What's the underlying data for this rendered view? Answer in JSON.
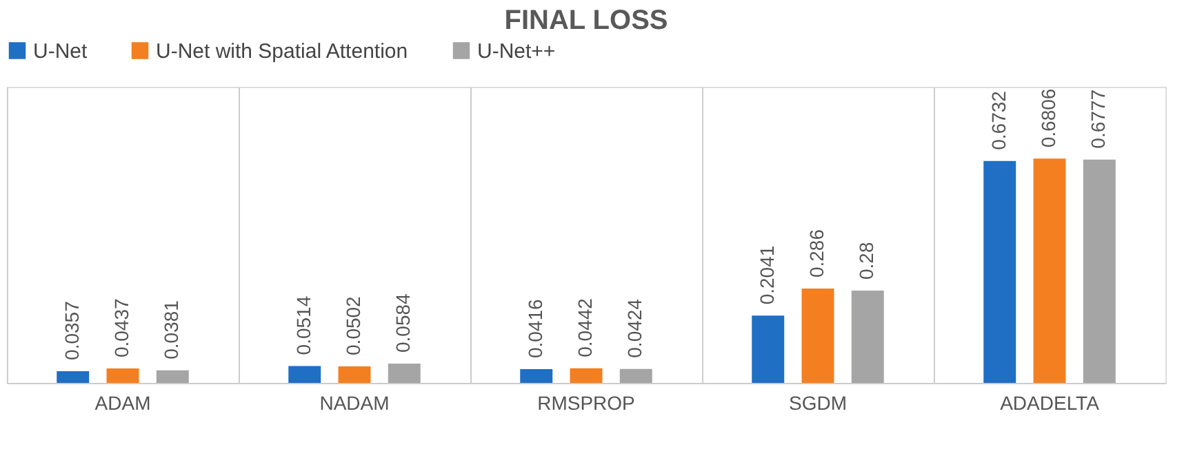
{
  "chart_data": {
    "type": "bar",
    "title": "FINAL LOSS",
    "categories": [
      "ADAM",
      "NADAM",
      "RMSPROP",
      "SGDM",
      "ADADELTA"
    ],
    "series": [
      {
        "name": "U-Net",
        "color": "#1f6fc4",
        "values": [
          0.0357,
          0.0514,
          0.0416,
          0.2041,
          0.6732
        ]
      },
      {
        "name": "U-Net with Spatial Attention",
        "color": "#f47f20",
        "values": [
          0.0437,
          0.0502,
          0.0442,
          0.286,
          0.6806
        ]
      },
      {
        "name": "U-Net++",
        "color": "#a5a5a5",
        "values": [
          0.0381,
          0.0584,
          0.0424,
          0.28,
          0.6777
        ]
      }
    ],
    "data_labels": true,
    "grid": "x",
    "legend": "top"
  }
}
